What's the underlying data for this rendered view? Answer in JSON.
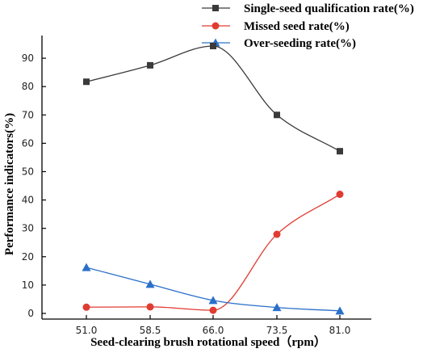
{
  "chart_data": {
    "type": "line",
    "title": "",
    "xlabel": "Seed-clearing brush rotational speed（rpm）",
    "ylabel": "Performance indicators(%)",
    "categories": [
      "51.0",
      "58.5",
      "66.0",
      "73.5",
      "81.0"
    ],
    "ylim": [
      -2,
      98
    ],
    "yticks": [
      "0",
      "10",
      "20",
      "30",
      "40",
      "50",
      "60",
      "70",
      "80",
      "90"
    ],
    "grid": false,
    "legend_position": "top-right",
    "series": [
      {
        "name": "Single-seed qualification rate(%)",
        "values": [
          81.7,
          87.5,
          94.3,
          70.0,
          57.2
        ],
        "color": "#3a3a3a",
        "marker": "square"
      },
      {
        "name": "Missed seed rate(%)",
        "values": [
          2.2,
          2.3,
          1.1,
          27.9,
          42.0
        ],
        "color": "#e03c31",
        "marker": "circle"
      },
      {
        "name": "Over-seeding rate(%)",
        "values": [
          16.2,
          10.3,
          4.6,
          2.1,
          0.9
        ],
        "color": "#2a6fc9",
        "marker": "triangle"
      }
    ]
  }
}
